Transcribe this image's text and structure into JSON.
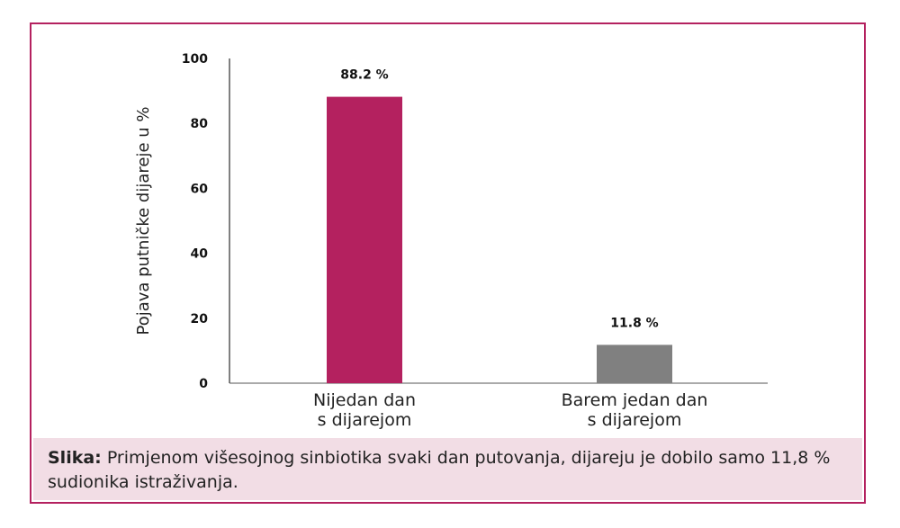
{
  "chart_data": {
    "type": "bar",
    "categories": [
      [
        "Nijedan dan",
        "s dijarejom"
      ],
      [
        "Barem jedan dan",
        "s dijarejom"
      ]
    ],
    "values": [
      88.2,
      11.8
    ],
    "value_labels": [
      "88.2 %",
      "11.8 %"
    ],
    "bar_colors": [
      "#b4215f",
      "#808080"
    ],
    "ylabel": "Pojava putničke dijareje u %",
    "ylim": [
      0,
      100
    ],
    "yticks": [
      0,
      20,
      40,
      60,
      80,
      100
    ],
    "grid": false
  },
  "caption": {
    "label": "Slika:",
    "text": "Primjenom višesojnog sinbiotika svaki dan putovanja, dijareju je dobilo samo 11,8 % sudionika istraživanja."
  },
  "colors": {
    "border": "#b4215f",
    "caption_bg": "#f2dde5"
  }
}
